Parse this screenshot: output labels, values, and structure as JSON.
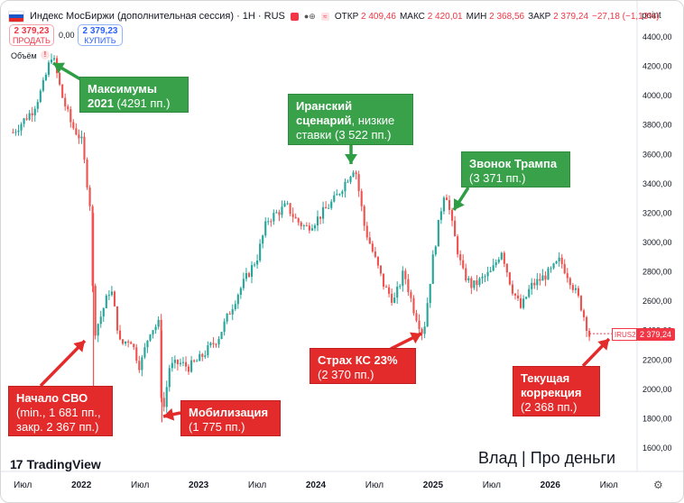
{
  "header": {
    "title": "Индекс МосБиржи (дополнительная сессия) · 1Н · RUS",
    "ohlc": [
      {
        "k": "ОТКР",
        "v": "2 409,46"
      },
      {
        "k": "МАКС",
        "v": "2 420,01"
      },
      {
        "k": "МИН",
        "v": "2 368,56"
      },
      {
        "k": "ЗАКР",
        "v": "2 379,24"
      },
      {
        "k": "",
        "v": "−27,18 (−1,13%)"
      }
    ],
    "axis_title": "point"
  },
  "trade": {
    "sell_price": "2 379,23",
    "sell_label": "ПРОДАТЬ",
    "spread": "0,00",
    "buy_price": "2 379,23",
    "buy_label": "КУПИТЬ"
  },
  "volume_label": "Объём",
  "volume_marker": "!",
  "price_badge": "2 379,24",
  "symbol_badge": "IRUS2",
  "brand": "TradingView",
  "author": "Влад | Про деньги",
  "settings_icon": "gear-icon",
  "colors": {
    "up": "#26a69a",
    "down": "#ef5350",
    "ann_green": "#3aa14b",
    "ann_red": "#e32b2b",
    "arrow_green": "#2e9e44",
    "arrow_red": "#e32b2b"
  },
  "annotations": [
    {
      "id": "max2021",
      "color": "green",
      "bold": "Максимумы 2021",
      "text": " (4291 пп.)"
    },
    {
      "id": "iran",
      "color": "green",
      "bold": "Иранский сценарий",
      "text": ", низкие ставки (3 522 пп.)"
    },
    {
      "id": "trump",
      "color": "green",
      "bold": "Звонок Трампа",
      "text": " (3 371 пп.)"
    },
    {
      "id": "svo",
      "color": "red",
      "bold": "Начало СВО",
      "text": " (min., 1 681 пп., закр. 2 367 пп.)"
    },
    {
      "id": "mob",
      "color": "red",
      "bold": "Мобилизация",
      "text": " (1 775 пп.)"
    },
    {
      "id": "ks",
      "color": "red",
      "bold": "Страх КС 23%",
      "text": " (2 370 пп.)"
    },
    {
      "id": "corr",
      "color": "red",
      "bold": "Текущая коррекция",
      "text": " (2 368 пп.)"
    }
  ],
  "chart_data": {
    "type": "candlestick",
    "title": "Индекс МосБиржи (дополнительная сессия)",
    "interval": "1Н",
    "ylim": [
      1500,
      4500
    ],
    "y_ticks": [
      "4400,00",
      "4200,00",
      "4000,00",
      "3800,00",
      "3600,00",
      "3400,00",
      "3200,00",
      "3000,00",
      "2800,00",
      "2600,00",
      "2400,00",
      "2200,00",
      "2000,00",
      "1800,00",
      "1600,00"
    ],
    "x_ticks": [
      "Июл",
      "2022",
      "Июл",
      "2023",
      "Июл",
      "2024",
      "Июл",
      "2025",
      "Июл",
      "2026",
      "Июл"
    ],
    "grid": false,
    "path": [
      [
        "2021-06",
        3750
      ],
      [
        "2021-08",
        3900
      ],
      [
        "2021-09",
        4050
      ],
      [
        "2021-10",
        4291
      ],
      [
        "2021-11",
        4000
      ],
      [
        "2021-12",
        3800
      ],
      [
        "2022-01",
        3700
      ],
      [
        "2022-02",
        3200
      ],
      [
        "2022-02",
        2367
      ],
      [
        "2022-03",
        2500
      ],
      [
        "2022-04",
        2700
      ],
      [
        "2022-05",
        2300
      ],
      [
        "2022-06",
        2350
      ],
      [
        "2022-07",
        2150
      ],
      [
        "2022-08",
        2400
      ],
      [
        "2022-09",
        2450
      ],
      [
        "2022-09",
        1775
      ],
      [
        "2022-10",
        2150
      ],
      [
        "2022-11",
        2180
      ],
      [
        "2022-12",
        2150
      ],
      [
        "2023-01",
        2200
      ],
      [
        "2023-03",
        2350
      ],
      [
        "2023-05",
        2650
      ],
      [
        "2023-07",
        2900
      ],
      [
        "2023-08",
        3150
      ],
      [
        "2023-10",
        3250
      ],
      [
        "2023-11",
        3150
      ],
      [
        "2023-12",
        3100
      ],
      [
        "2024-01",
        3150
      ],
      [
        "2024-03",
        3300
      ],
      [
        "2024-05",
        3522
      ],
      [
        "2024-06",
        3100
      ],
      [
        "2024-07",
        2900
      ],
      [
        "2024-08",
        2700
      ],
      [
        "2024-09",
        2600
      ],
      [
        "2024-10",
        2800
      ],
      [
        "2024-11",
        2550
      ],
      [
        "2024-12",
        2370
      ],
      [
        "2025-01",
        2900
      ],
      [
        "2025-02",
        3300
      ],
      [
        "2025-02",
        3371
      ],
      [
        "2025-03",
        3100
      ],
      [
        "2025-04",
        2800
      ],
      [
        "2025-05",
        2700
      ],
      [
        "2025-06",
        2750
      ],
      [
        "2025-07",
        2800
      ],
      [
        "2025-08",
        2950
      ],
      [
        "2025-09",
        2700
      ],
      [
        "2025-10",
        2550
      ],
      [
        "2025-11",
        2700
      ],
      [
        "2025-12",
        2750
      ],
      [
        "2026-01",
        2800
      ],
      [
        "2026-02",
        2880
      ],
      [
        "2026-03",
        2750
      ],
      [
        "2026-04",
        2600
      ],
      [
        "2026-05",
        2368
      ]
    ],
    "last": 2379.24
  }
}
